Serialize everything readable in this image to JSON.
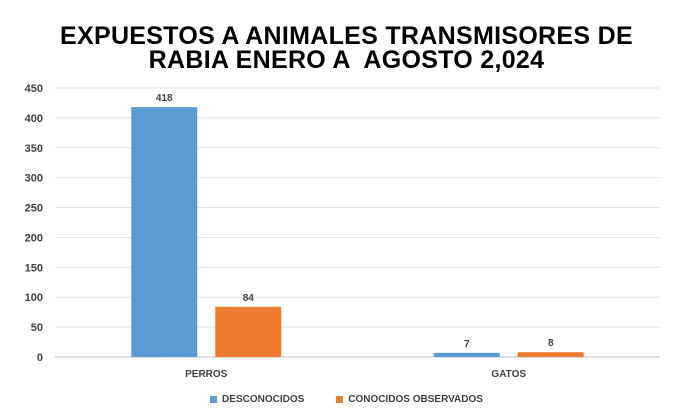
{
  "chart_title_line1": "EXPUESTOS A ANIMALES TRANSMISORES DE",
  "chart_title_line2": "RABIA ENERO A  AGOSTO 2,024",
  "chart_data": {
    "type": "bar",
    "categories": [
      "PERROS",
      "GATOS"
    ],
    "series": [
      {
        "name": "DESCONOCIDOS",
        "values": [
          418,
          7
        ],
        "color": "#5b9bd5"
      },
      {
        "name": "CONOCIDOS OBSERVADOS",
        "values": [
          84,
          8
        ],
        "color": "#ed7d31"
      }
    ],
    "ylim": [
      0,
      450
    ],
    "yticks": [
      0,
      50,
      100,
      150,
      200,
      250,
      300,
      350,
      400,
      450
    ],
    "grid": true,
    "legend_position": "bottom",
    "data_labels": true
  }
}
